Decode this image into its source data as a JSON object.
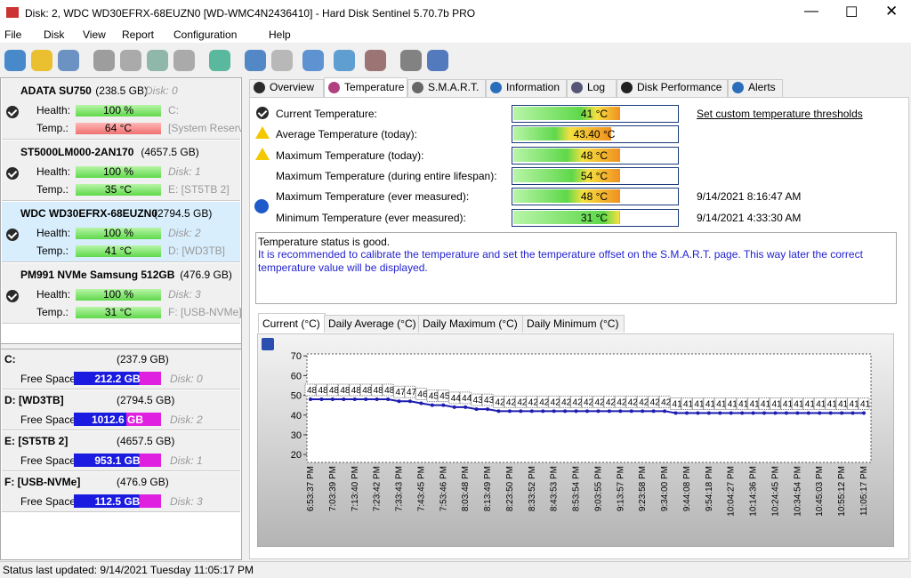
{
  "window": {
    "title": "Disk: 2, WDC WD30EFRX-68EUZN0 [WD-WMC4N2436410]  -  Hard Disk Sentinel 5.70.7b PRO",
    "menu": [
      "File",
      "Disk",
      "View",
      "Report",
      "Configuration",
      "Help"
    ]
  },
  "disks": [
    {
      "model": "ADATA SU750",
      "size": "(238.5 GB)",
      "header_note": "Disk: 0",
      "health_label": "Health:",
      "health": "100 %",
      "health_note": "C:",
      "temp_label": "Temp.:",
      "temp": "64 °C",
      "temp_note": "[System Reserv"
    },
    {
      "model": "ST5000LM000-2AN170",
      "size": "(4657.5 GB)",
      "health_label": "Health:",
      "health": "100 %",
      "health_note": "Disk: 1",
      "temp_label": "Temp.:",
      "temp": "35 °C",
      "temp_note": "E: [ST5TB 2]"
    },
    {
      "model": "WDC WD30EFRX-68EUZN0",
      "size": "(2794.5 GB)",
      "health_label": "Health:",
      "health": "100 %",
      "health_note": "Disk: 2",
      "temp_label": "Temp.:",
      "temp": "41 °C",
      "temp_note": "D: [WD3TB]"
    },
    {
      "model": "PM991 NVMe Samsung 512GB",
      "size": "(476.9 GB)",
      "health_label": "Health:",
      "health": "100 %",
      "health_note": "Disk: 3",
      "temp_label": "Temp.:",
      "temp": "31 °C",
      "temp_note": "F: [USB-NVMe]"
    }
  ],
  "volumes": [
    {
      "name": "C:",
      "size": "(237.9 GB)",
      "free_label": "Free Space",
      "free": "212.2 GB",
      "disk": "Disk: 0"
    },
    {
      "name": "D: [WD3TB]",
      "size": "(2794.5 GB)",
      "free_label": "Free Space",
      "free": "1012.6 GB",
      "disk": "Disk: 2"
    },
    {
      "name": "E: [ST5TB 2]",
      "size": "(4657.5 GB)",
      "free_label": "Free Space",
      "free": "953.1 GB",
      "disk": "Disk: 1"
    },
    {
      "name": "F: [USB-NVMe]",
      "size": "(476.9 GB)",
      "free_label": "Free Space",
      "free": "112.5 GB",
      "disk": "Disk: 3"
    }
  ],
  "tabs": [
    "Overview",
    "Temperature",
    "S.M.A.R.T.",
    "Information",
    "Log",
    "Disk Performance",
    "Alerts"
  ],
  "temperatures": [
    {
      "label": "Current Temperature:",
      "value": "41 °C"
    },
    {
      "label": "Average Temperature (today):",
      "value": "43.40 °C"
    },
    {
      "label": "Maximum Temperature (today):",
      "value": "48 °C"
    },
    {
      "label": "Maximum Temperature (during entire lifespan):",
      "value": "54 °C"
    },
    {
      "label": "Maximum Temperature (ever measured):",
      "value": "48 °C",
      "time": "9/14/2021 8:16:47 AM"
    },
    {
      "label": "Minimum Temperature (ever measured):",
      "value": "31 °C",
      "time": "9/14/2021 4:33:30 AM"
    }
  ],
  "threshold_link": "Set custom temperature thresholds",
  "message": {
    "status": "Temperature status is good.",
    "note": "It is recommended to calibrate the temperature and set the temperature offset on the S.M.A.R.T. page. This way later the correct temperature value will be displayed."
  },
  "chart_tabs": [
    "Current (°C)",
    "Daily Average (°C)",
    "Daily Maximum (°C)",
    "Daily Minimum (°C)"
  ],
  "chart_data": {
    "type": "line",
    "color": "#1c1cb0",
    "categories": [
      "6:53:37 PM",
      null,
      "7:03:39 PM",
      null,
      "7:13:40 PM",
      null,
      "7:23:42 PM",
      null,
      "7:33:43 PM",
      null,
      "7:43:45 PM",
      null,
      "7:53:46 PM",
      null,
      "8:03:48 PM",
      null,
      "8:13:49 PM",
      null,
      "8:23:50 PM",
      null,
      "8:33:52 PM",
      null,
      "8:43:53 PM",
      null,
      "8:53:54 PM",
      null,
      "9:03:55 PM",
      null,
      "9:13:57 PM",
      null,
      "9:23:58 PM",
      null,
      "9:34:00 PM",
      null,
      "9:44:08 PM",
      null,
      "9:54:18 PM",
      null,
      "10:04:27 PM",
      null,
      "10:14:36 PM",
      null,
      "10:24:45 PM",
      null,
      "10:34:54 PM",
      null,
      "10:45:03 PM",
      null,
      "10:55:12 PM",
      null,
      "11:05:17 PM"
    ],
    "values": [
      48,
      48,
      48,
      48,
      48,
      48,
      48,
      48,
      47,
      47,
      46,
      45,
      45,
      44,
      44,
      43,
      43,
      42,
      42,
      42,
      42,
      42,
      42,
      42,
      42,
      42,
      42,
      42,
      42,
      42,
      42,
      42,
      42,
      41,
      41,
      41,
      41,
      41,
      41,
      41,
      41,
      41,
      41,
      41,
      41,
      41,
      41,
      41,
      41,
      41,
      41
    ],
    "ylim": [
      16,
      71
    ],
    "yticks": [
      20,
      30,
      40,
      50,
      60,
      70
    ],
    "grid": false
  },
  "status_bar": "Status last updated: 9/14/2021 Tuesday 11:05:17 PM"
}
